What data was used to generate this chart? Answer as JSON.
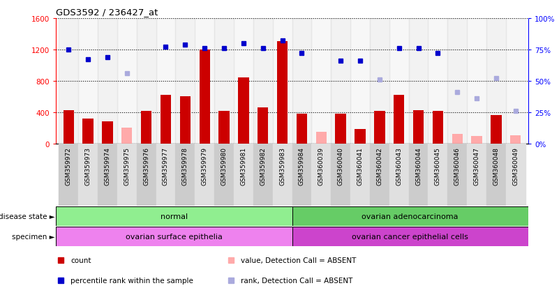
{
  "title": "GDS3592 / 236427_at",
  "samples": [
    "GSM359972",
    "GSM359973",
    "GSM359974",
    "GSM359975",
    "GSM359976",
    "GSM359977",
    "GSM359978",
    "GSM359979",
    "GSM359980",
    "GSM359981",
    "GSM359982",
    "GSM359983",
    "GSM359984",
    "GSM360039",
    "GSM360040",
    "GSM360041",
    "GSM360042",
    "GSM360043",
    "GSM360044",
    "GSM360045",
    "GSM360046",
    "GSM360047",
    "GSM360048",
    "GSM360049"
  ],
  "count_values": [
    430,
    320,
    280,
    null,
    420,
    620,
    600,
    1200,
    420,
    840,
    460,
    1310,
    380,
    null,
    380,
    185,
    415,
    620,
    430,
    415,
    null,
    null,
    360,
    null
  ],
  "count_absent": [
    null,
    null,
    null,
    200,
    null,
    null,
    null,
    null,
    null,
    null,
    null,
    null,
    null,
    150,
    null,
    null,
    null,
    null,
    null,
    null,
    120,
    100,
    null,
    110
  ],
  "rank_values_pct": [
    75,
    67,
    69,
    null,
    null,
    77,
    79,
    76,
    76,
    80,
    76,
    82,
    72,
    null,
    66,
    66,
    null,
    76,
    76,
    72,
    null,
    null,
    null,
    null
  ],
  "rank_absent_pct": [
    null,
    null,
    null,
    56,
    null,
    null,
    null,
    null,
    null,
    null,
    null,
    null,
    null,
    null,
    null,
    null,
    51,
    null,
    null,
    null,
    41,
    36,
    52,
    26
  ],
  "disease_state_groups": [
    {
      "label": "normal",
      "start": 0,
      "end": 11,
      "color": "#90ee90"
    },
    {
      "label": "ovarian adenocarcinoma",
      "start": 12,
      "end": 23,
      "color": "#66cc66"
    }
  ],
  "specimen_groups": [
    {
      "label": "ovarian surface epithelia",
      "start": 0,
      "end": 11,
      "color": "#ee82ee"
    },
    {
      "label": "ovarian cancer epithelial cells",
      "start": 12,
      "end": 23,
      "color": "#cc44cc"
    }
  ],
  "bar_color_present": "#cc0000",
  "bar_color_absent": "#ffaaaa",
  "dot_color_present": "#0000cc",
  "dot_color_absent": "#aaaadd",
  "ylim_left": [
    0,
    1600
  ],
  "ylim_right": [
    0,
    100
  ],
  "yticks_left": [
    0,
    400,
    800,
    1200,
    1600
  ],
  "yticks_right": [
    0,
    25,
    50,
    75,
    100
  ],
  "legend_items": [
    {
      "label": "count",
      "color": "#cc0000"
    },
    {
      "label": "percentile rank within the sample",
      "color": "#0000cc"
    },
    {
      "label": "value, Detection Call = ABSENT",
      "color": "#ffaaaa"
    },
    {
      "label": "rank, Detection Call = ABSENT",
      "color": "#aaaadd"
    }
  ]
}
